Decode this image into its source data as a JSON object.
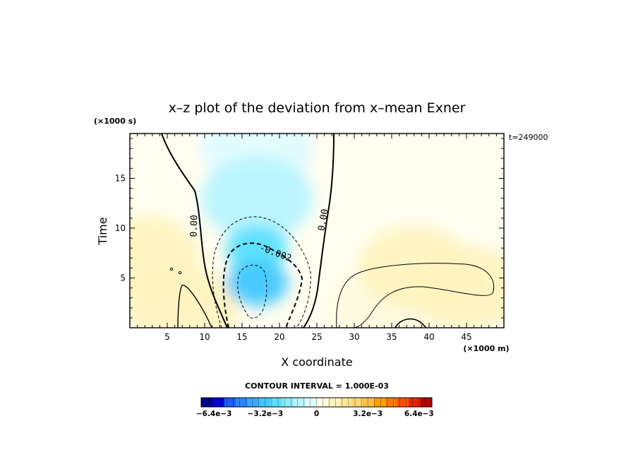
{
  "chart_data": {
    "type": "heatmap",
    "title": "x–z plot of the deviation from x–mean Exner",
    "xlabel": "X coordinate",
    "ylabel": "Time",
    "x_unit": "(×1000 m)",
    "y_unit": "(×1000 s)",
    "time_label": "t=249000",
    "xlim": [
      0,
      50
    ],
    "ylim": [
      0,
      19.5
    ],
    "x_ticks": [
      "5",
      "10",
      "15",
      "20",
      "25",
      "30",
      "35",
      "40",
      "45"
    ],
    "y_ticks": [
      "5",
      "10",
      "15"
    ],
    "contour_interval_text": "CONTOUR INTERVAL = 1.000E-03",
    "contour_labels": [
      "0.00",
      "0.00",
      "-0.002"
    ],
    "colorbar": {
      "min": -0.0072,
      "max": 0.0072,
      "step": 0.0004,
      "tick_labels": [
        "−6.4e−3",
        "−3.2e−3",
        "0",
        "3.2e−3",
        "6.4e−3"
      ]
    },
    "features": [
      {
        "x": 17,
        "y": 4.5,
        "value": -0.0032
      },
      {
        "x": 17,
        "y": 8,
        "value": -0.0022
      },
      {
        "x": 17,
        "y": 13,
        "value": -0.0008
      },
      {
        "x": 17,
        "y": 18,
        "value": -0.0003
      },
      {
        "x": 7,
        "y": 2,
        "value": 0.0012
      },
      {
        "x": 2,
        "y": 7,
        "value": 0.0009
      },
      {
        "x": 38,
        "y": 6,
        "value": 0.0011
      },
      {
        "x": 45,
        "y": 4,
        "value": 0.0013
      },
      {
        "x": 34,
        "y": 2,
        "value": 0.0007
      }
    ]
  },
  "colors": {
    "negative": [
      "#00008b",
      "#0000e0",
      "#1a5cff",
      "#2e86ff",
      "#3aa8ff",
      "#40c8ff",
      "#5ae0ff",
      "#8cecff",
      "#b8f4ff",
      "#e0fbff"
    ],
    "positive": [
      "#fffbe0",
      "#fff3c0",
      "#ffe898",
      "#ffd870",
      "#ffc040",
      "#ffa000",
      "#ff7a00",
      "#ff4e00",
      "#e82000",
      "#b00000"
    ],
    "neutral": "#ffffff"
  }
}
